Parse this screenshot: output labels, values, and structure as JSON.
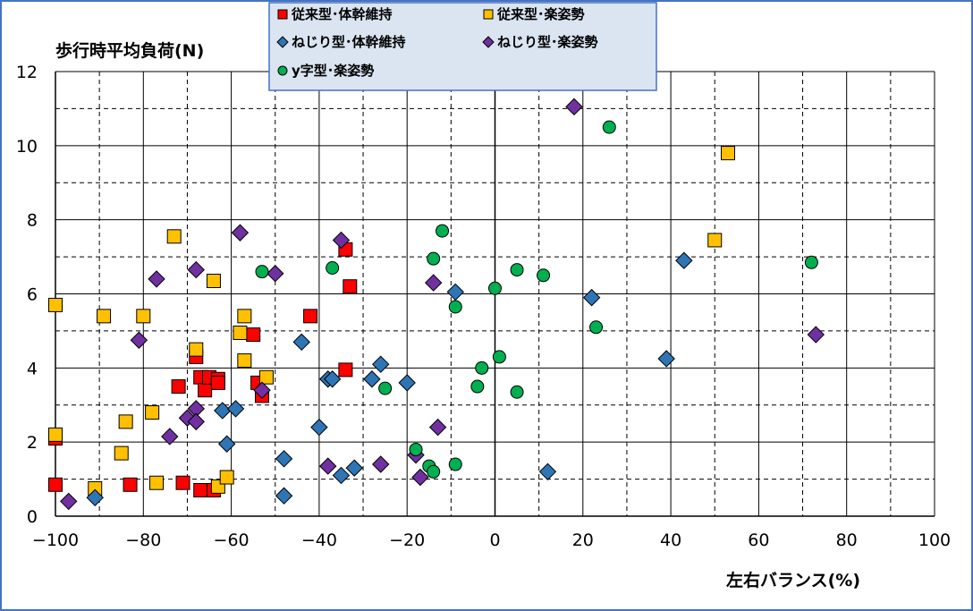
{
  "chart_data": {
    "type": "scatter",
    "title": "",
    "ylabel": "歩行時平均負荷(N)",
    "xlabel": "左右バランス(%)",
    "xlim": [
      -100,
      100
    ],
    "ylim": [
      0,
      12
    ],
    "xticks": [
      -100,
      -80,
      -60,
      -40,
      -20,
      0,
      20,
      40,
      60,
      80,
      100
    ],
    "yticks": [
      0,
      2,
      4,
      6,
      8,
      10,
      12
    ],
    "xtick_labels": [
      "−100",
      "−80",
      "−60",
      "−40",
      "−20",
      "0",
      "20",
      "40",
      "60",
      "80",
      "100"
    ],
    "ytick_labels": [
      "0",
      "2",
      "4",
      "6",
      "8",
      "10",
      "12"
    ],
    "grid": true,
    "legend_position": "top-center",
    "series": [
      {
        "name": "従来型･体幹維持",
        "marker": "square",
        "color": "#ff0000",
        "points": [
          [
            -100,
            2.1
          ],
          [
            -100,
            0.85
          ],
          [
            -83,
            0.85
          ],
          [
            -72,
            3.5
          ],
          [
            -71,
            0.9
          ],
          [
            -68,
            4.3
          ],
          [
            -67,
            3.75
          ],
          [
            -67,
            0.7
          ],
          [
            -66,
            3.4
          ],
          [
            -65,
            3.75
          ],
          [
            -64,
            0.7
          ],
          [
            -63,
            3.7
          ],
          [
            -63,
            3.6
          ],
          [
            -55,
            4.9
          ],
          [
            -54,
            3.6
          ],
          [
            -53,
            3.25
          ],
          [
            -42,
            5.4
          ],
          [
            -34,
            7.2
          ],
          [
            -34,
            3.95
          ],
          [
            -33,
            6.2
          ]
        ]
      },
      {
        "name": "従来型･楽姿勢",
        "marker": "square",
        "color": "#ffc000",
        "points": [
          [
            -100,
            5.7
          ],
          [
            -100,
            2.2
          ],
          [
            -89,
            5.4
          ],
          [
            -91,
            0.75
          ],
          [
            -85,
            1.7
          ],
          [
            -84,
            2.55
          ],
          [
            -80,
            5.4
          ],
          [
            -78,
            2.8
          ],
          [
            -77,
            0.9
          ],
          [
            -73,
            7.55
          ],
          [
            -68,
            4.5
          ],
          [
            -64,
            6.35
          ],
          [
            -63,
            0.8
          ],
          [
            -61,
            1.05
          ],
          [
            -57,
            5.4
          ],
          [
            -58,
            4.95
          ],
          [
            -57,
            4.2
          ],
          [
            -52,
            3.75
          ],
          [
            50,
            7.45
          ],
          [
            53,
            9.8
          ]
        ]
      },
      {
        "name": "ねじり型･体幹維持",
        "marker": "diamond",
        "color": "#2e75b6",
        "points": [
          [
            -91,
            0.5
          ],
          [
            -62,
            2.85
          ],
          [
            -61,
            1.95
          ],
          [
            -59,
            2.9
          ],
          [
            -48,
            1.55
          ],
          [
            -48,
            0.55
          ],
          [
            -44,
            4.7
          ],
          [
            -40,
            2.4
          ],
          [
            -38,
            3.7
          ],
          [
            -37,
            3.7
          ],
          [
            -35,
            1.1
          ],
          [
            -32,
            1.3
          ],
          [
            -28,
            3.7
          ],
          [
            -26,
            4.1
          ],
          [
            -20,
            3.6
          ],
          [
            -9,
            6.05
          ],
          [
            12,
            1.2
          ],
          [
            22,
            5.9
          ],
          [
            39,
            4.25
          ],
          [
            43,
            6.9
          ]
        ]
      },
      {
        "name": "ねじり型･楽姿勢",
        "marker": "diamond",
        "color": "#7030a0",
        "points": [
          [
            -97,
            0.4
          ],
          [
            -81,
            4.75
          ],
          [
            -77,
            6.4
          ],
          [
            -74,
            2.15
          ],
          [
            -70,
            2.65
          ],
          [
            -68,
            2.9
          ],
          [
            -68,
            2.55
          ],
          [
            -68,
            6.65
          ],
          [
            -58,
            7.65
          ],
          [
            -53,
            3.4
          ],
          [
            -50,
            6.55
          ],
          [
            -38,
            1.35
          ],
          [
            -35,
            7.45
          ],
          [
            -26,
            1.4
          ],
          [
            -18,
            1.65
          ],
          [
            -17,
            1.05
          ],
          [
            -14,
            6.3
          ],
          [
            -13,
            2.4
          ],
          [
            18,
            11.05
          ],
          [
            73,
            4.9
          ]
        ]
      },
      {
        "name": "y字型･楽姿勢",
        "marker": "circle",
        "color": "#00b050",
        "points": [
          [
            -53,
            6.6
          ],
          [
            -37,
            6.7
          ],
          [
            -25,
            3.45
          ],
          [
            -18,
            1.8
          ],
          [
            -15,
            1.35
          ],
          [
            -14,
            1.2
          ],
          [
            -14,
            6.95
          ],
          [
            -12,
            7.7
          ],
          [
            -9,
            5.65
          ],
          [
            -9,
            1.4
          ],
          [
            -4,
            3.5
          ],
          [
            -3,
            4.0
          ],
          [
            0,
            6.15
          ],
          [
            1,
            4.3
          ],
          [
            5,
            6.65
          ],
          [
            5,
            3.35
          ],
          [
            11,
            6.5
          ],
          [
            23,
            5.1
          ],
          [
            26,
            10.5
          ],
          [
            72,
            6.85
          ]
        ]
      }
    ]
  }
}
